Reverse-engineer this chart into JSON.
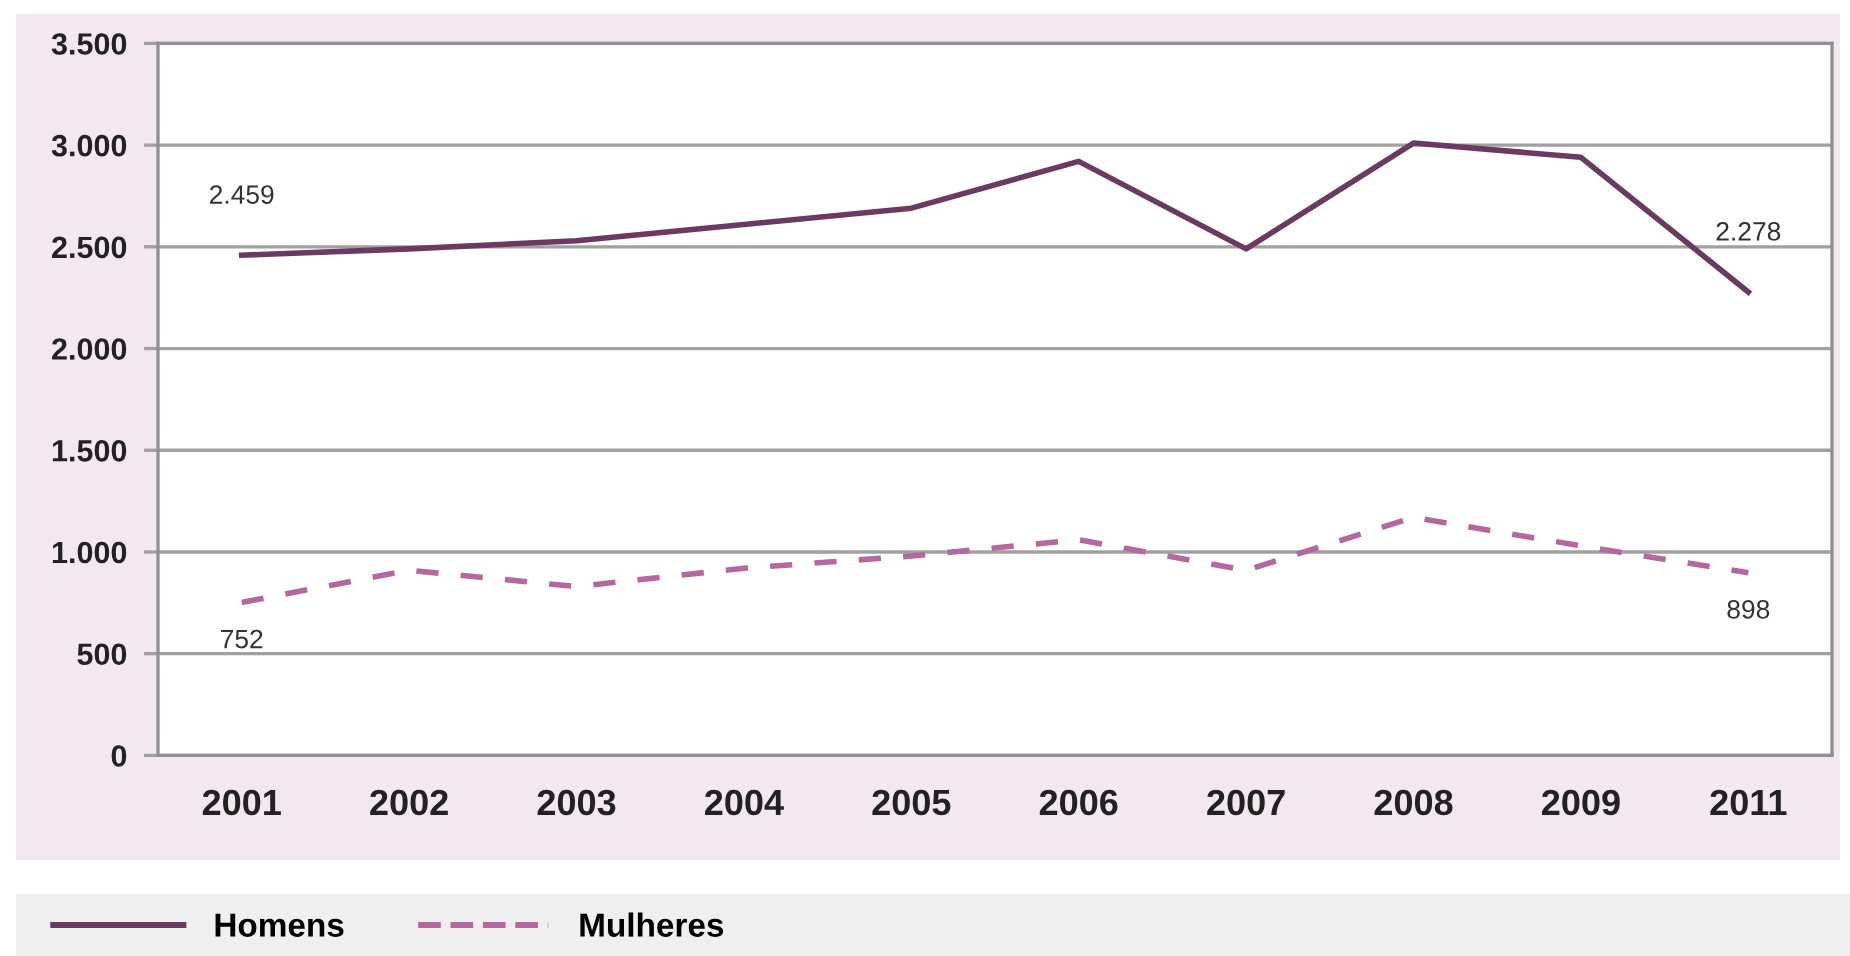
{
  "chart_data": {
    "type": "line",
    "categories": [
      "2001",
      "2002",
      "2003",
      "2004",
      "2005",
      "2006",
      "2007",
      "2008",
      "2009",
      "2011"
    ],
    "series": [
      {
        "name": "Homens",
        "color": "#6b3a60",
        "line_style": "solid",
        "values": [
          2459,
          2490,
          2530,
          2610,
          2690,
          2920,
          2490,
          3010,
          2940,
          2278
        ],
        "value_labels": [
          "2.459",
          null,
          null,
          null,
          null,
          null,
          null,
          null,
          null,
          "2.278"
        ]
      },
      {
        "name": "Mulheres",
        "color": "#b5679f",
        "line_style": "dashed",
        "values": [
          752,
          910,
          830,
          920,
          980,
          1060,
          910,
          1170,
          1030,
          898
        ],
        "value_labels": [
          "752",
          null,
          null,
          null,
          null,
          null,
          null,
          null,
          null,
          "898"
        ]
      }
    ],
    "ylim": [
      0,
      3500
    ],
    "yticks": [
      0,
      500,
      {
        "value": 1000,
        "label": "1.000"
      },
      {
        "value": 1500,
        "label": "1.500"
      },
      {
        "value": 2000,
        "label": "2.000"
      },
      {
        "value": 2500,
        "label": "2.500"
      },
      {
        "value": 3000,
        "label": "3.000"
      },
      {
        "value": 3500,
        "label": "3.500"
      }
    ],
    "grid": "y",
    "legend": "bottom"
  }
}
